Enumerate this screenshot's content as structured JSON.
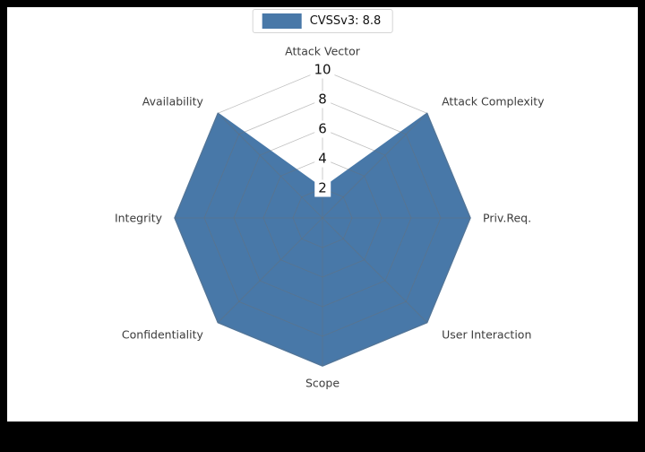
{
  "page": {
    "outer_background": "#000000",
    "figure_background": "#ffffff"
  },
  "legend": {
    "label": "CVSSv3: 8.8",
    "swatch_color": "#4878a8",
    "position": "top-center"
  },
  "chart_data": {
    "type": "radar",
    "title": "",
    "categories": [
      "Attack Vector",
      "Attack Complexity",
      "Priv.Req.",
      "User Interaction",
      "Scope",
      "Confidentiality",
      "Integrity",
      "Availability"
    ],
    "series": [
      {
        "name": "CVSSv3: 8.8",
        "values": [
          2,
          10,
          10,
          10,
          10,
          10,
          10,
          10
        ]
      }
    ],
    "radial_ticks": [
      2,
      4,
      6,
      8,
      10
    ],
    "r_min": 0,
    "r_max": 10,
    "grid": true,
    "grid_shape": "polygon-web",
    "fill_color": "#4878a8",
    "edge_color": "#4878a8",
    "grid_color": "#6e6e6e",
    "label_color": "#3c3c3c",
    "tick_label_color": "#111111",
    "legend_position": "top-center"
  }
}
